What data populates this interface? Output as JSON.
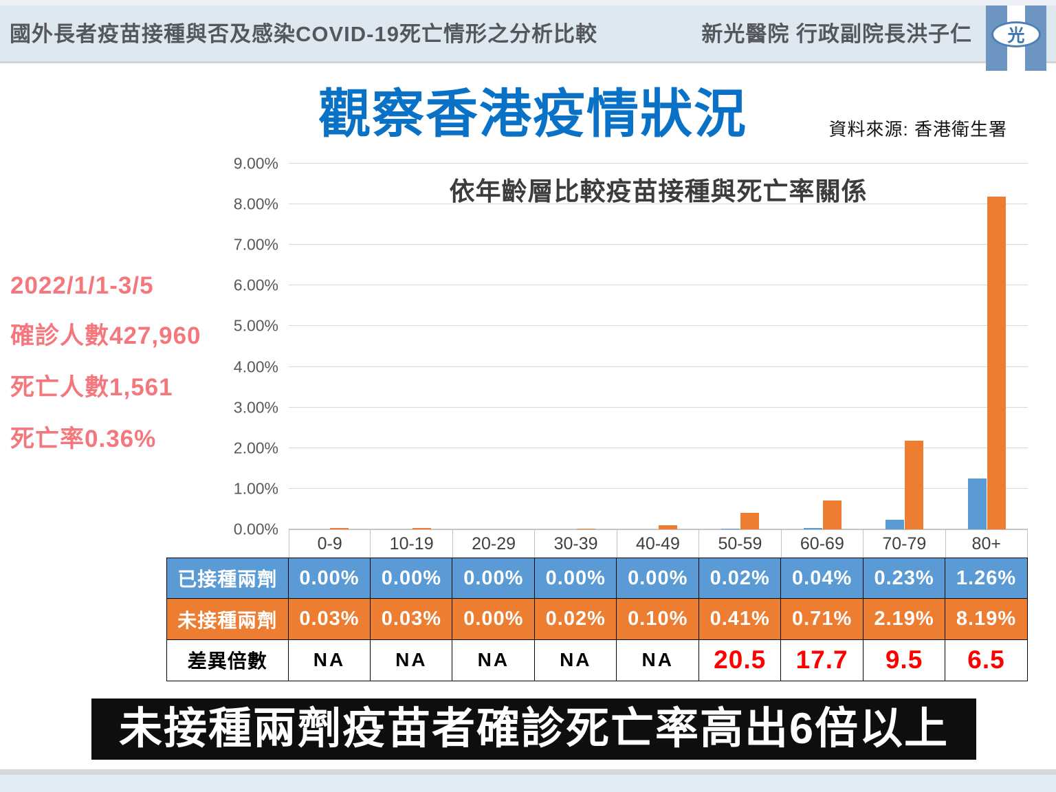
{
  "header": {
    "title": "國外長者疫苗接種與否及感染COVID-19死亡情形之分析比較",
    "author": "新光醫院 行政副院長洪子仁",
    "logo_char": "光"
  },
  "main": {
    "title": "觀察香港疫情狀況",
    "source": "資料來源: 香港衛生署",
    "stats": [
      "2022/1/1-3/5",
      "確診人數427,960",
      "死亡人數1,561",
      "死亡率0.36%"
    ],
    "banner": "未接種兩劑疫苗者確診死亡率高出6倍以上"
  },
  "chart_data": {
    "type": "bar",
    "title": "依年齡層比較疫苗接種與死亡率關係",
    "categories": [
      "0-9",
      "10-19",
      "20-29",
      "30-39",
      "40-49",
      "50-59",
      "60-69",
      "70-79",
      "80+"
    ],
    "series": [
      {
        "name": "已接種兩劑",
        "color": "#5B9BD5",
        "values": [
          0.0,
          0.0,
          0.0,
          0.0,
          0.0,
          0.02,
          0.04,
          0.23,
          1.26
        ]
      },
      {
        "name": "未接種兩劑",
        "color": "#ED7D31",
        "values": [
          0.03,
          0.03,
          0.0,
          0.02,
          0.1,
          0.41,
          0.71,
          2.19,
          8.19
        ]
      }
    ],
    "ylabel": "",
    "xlabel": "",
    "ylim": [
      0,
      9
    ],
    "yticks": [
      "0.00%",
      "1.00%",
      "2.00%",
      "3.00%",
      "4.00%",
      "5.00%",
      "6.00%",
      "7.00%",
      "8.00%",
      "9.00%"
    ],
    "grid": true,
    "legend_position": "table-below"
  },
  "table": {
    "rows": [
      {
        "label": "已接種兩劑",
        "bg": "#5B9BD5",
        "text_color": "#FFFFFF",
        "red_values": false,
        "values": [
          "0.00%",
          "0.00%",
          "0.00%",
          "0.00%",
          "0.00%",
          "0.02%",
          "0.04%",
          "0.23%",
          "1.26%"
        ]
      },
      {
        "label": "未接種兩劑",
        "bg": "#ED7D31",
        "text_color": "#FFFFFF",
        "red_values": false,
        "values": [
          "0.03%",
          "0.03%",
          "0.00%",
          "0.02%",
          "0.10%",
          "0.41%",
          "0.71%",
          "2.19%",
          "8.19%"
        ]
      },
      {
        "label": "差異倍數",
        "bg": "#FFFFFF",
        "text_color": "#000000",
        "red_values": true,
        "values": [
          "NA",
          "NA",
          "NA",
          "NA",
          "NA",
          "20.5",
          "17.7",
          "9.5",
          "6.5"
        ]
      }
    ],
    "ratio_color": "#FF0000"
  }
}
